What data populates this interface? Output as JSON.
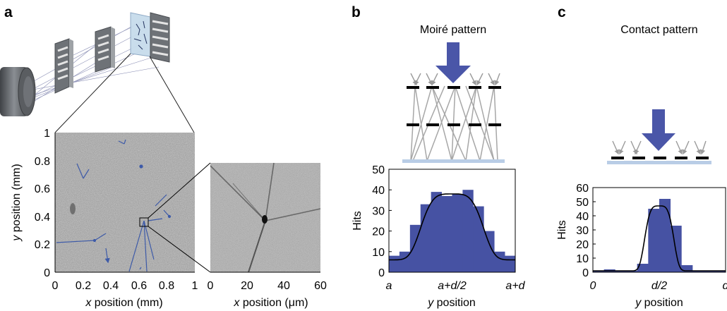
{
  "panels": {
    "a": "a",
    "b": "b",
    "c": "c"
  },
  "titles": {
    "b": "Moiré pattern",
    "c": "Contact pattern"
  },
  "axes": {
    "a_main": {
      "xlabel_var": "x",
      "xlabel_rest": " position (mm)",
      "ylabel_var": "y",
      "ylabel_rest": " position (mm)",
      "xticks": [
        "0",
        "0.2",
        "0.4",
        "0.6",
        "0.8",
        "1"
      ],
      "yticks": [
        "0",
        "0.2",
        "0.4",
        "0.6",
        "0.8",
        "1"
      ]
    },
    "a_zoom": {
      "xlabel_var": "x",
      "xlabel_rest": " position (μm)",
      "xticks": [
        "0",
        "20",
        "40",
        "60"
      ]
    },
    "b": {
      "ylabel": "Hits",
      "xlabel_var": "y",
      "xlabel_rest": " position",
      "yticks": [
        "0",
        "10",
        "20",
        "30",
        "40",
        "50"
      ],
      "xticks": [
        "a",
        "a+d/2",
        "a+d"
      ]
    },
    "c": {
      "ylabel": "Hits",
      "xlabel_var": "y",
      "xlabel_rest": " position",
      "yticks": [
        "0",
        "10",
        "20",
        "30",
        "40",
        "50",
        "60"
      ],
      "xticks": [
        "0",
        "d/2",
        "d"
      ]
    }
  },
  "colors": {
    "bar": "#4652a3",
    "arrow": "#4a56a8",
    "ray": "#a7a7a7",
    "detector": "#b9cde6",
    "track": "#3d5aa8"
  },
  "chart_data": [
    {
      "type": "bar",
      "title": "Moiré pattern",
      "xlabel": "y position",
      "ylabel": "Hits",
      "x_ticks": [
        "a",
        "a+d/2",
        "a+d"
      ],
      "ylim": [
        0,
        50
      ],
      "bin_fractions": [
        0.0,
        0.0833,
        0.1667,
        0.25,
        0.3333,
        0.4167,
        0.5,
        0.5833,
        0.6667,
        0.75,
        0.8333,
        0.9167
      ],
      "bin_width_fraction": 0.0833,
      "values": [
        8,
        10,
        23,
        33,
        39,
        37,
        38,
        40,
        32,
        20,
        10,
        8
      ],
      "fit_curve": {
        "type": "line",
        "peak": 38,
        "baseline": 6
      }
    },
    {
      "type": "bar",
      "title": "Contact pattern",
      "xlabel": "y position",
      "ylabel": "Hits",
      "x_ticks": [
        "0",
        "d/2",
        "d"
      ],
      "ylim": [
        0,
        60
      ],
      "bin_fractions": [
        0.0,
        0.0833,
        0.1667,
        0.25,
        0.3333,
        0.4167,
        0.5,
        0.5833,
        0.6667,
        0.75,
        0.8333,
        0.9167
      ],
      "bin_width_fraction": 0.0833,
      "values": [
        1,
        2,
        1,
        1,
        6,
        45,
        52,
        33,
        5,
        1,
        1,
        1
      ],
      "fit_curve": {
        "type": "line",
        "peak": 47,
        "baseline": 1
      }
    }
  ]
}
